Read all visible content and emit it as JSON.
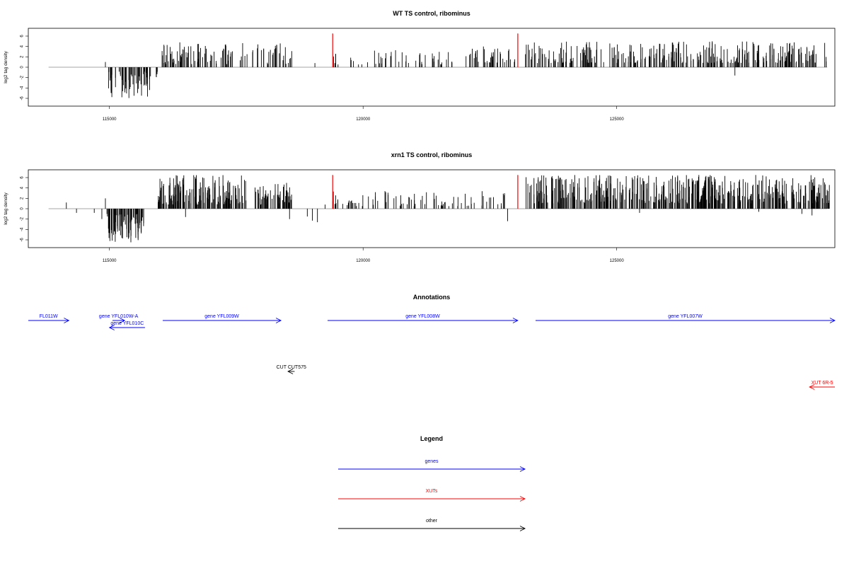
{
  "chart_data": [
    {
      "type": "bar",
      "title": "WT TS control, ribominus",
      "ylabel": "log2 tag density",
      "xlim": [
        113400,
        129300
      ],
      "ylim": [
        -7.5,
        7.5
      ],
      "yticks": [
        -6,
        -4,
        -2,
        0,
        2,
        4,
        6
      ],
      "xticks": [
        115000,
        120000,
        125000
      ],
      "xtick_labels": [
        "115000",
        "120000",
        "125000"
      ],
      "markers": [
        119400,
        123050
      ],
      "marker_color": "#ff0000",
      "regions": [
        {
          "start": 114950,
          "end": 115900,
          "min": -6,
          "max": -0.8,
          "n": 55,
          "seed": 11
        },
        {
          "start": 115900,
          "end": 116000,
          "min": -2,
          "max": -0.5,
          "n": 4,
          "seed": 3
        },
        {
          "start": 116000,
          "end": 118600,
          "min": 0.6,
          "max": 4.8,
          "n": 110,
          "seed": 21
        },
        {
          "start": 119400,
          "end": 121800,
          "min": 0.5,
          "max": 3.4,
          "n": 50,
          "seed": 31
        },
        {
          "start": 121950,
          "end": 123000,
          "min": 0.8,
          "max": 4.0,
          "n": 40,
          "seed": 41
        },
        {
          "start": 123200,
          "end": 129150,
          "min": 0.8,
          "max": 5.0,
          "n": 300,
          "seed": 51
        }
      ],
      "extras": [
        [
          114920,
          1.0
        ],
        [
          119050,
          0.8
        ],
        [
          127330,
          -1.6
        ]
      ]
    },
    {
      "type": "bar",
      "title": "xrn1 TS control, ribominus",
      "ylabel": "log2 tag density",
      "xlim": [
        113400,
        129300
      ],
      "ylim": [
        -7.5,
        7.5
      ],
      "yticks": [
        -6,
        -4,
        -2,
        0,
        2,
        4,
        6
      ],
      "xticks": [
        115000,
        120000,
        125000
      ],
      "xtick_labels": [
        "115000",
        "120000",
        "125000"
      ],
      "markers": [
        119400,
        123050
      ],
      "marker_color": "#ff0000",
      "regions": [
        {
          "start": 114950,
          "end": 115700,
          "min": -6.5,
          "max": -0.8,
          "n": 90,
          "seed": 12
        },
        {
          "start": 115950,
          "end": 117700,
          "min": 0.8,
          "max": 6.5,
          "n": 160,
          "seed": 22
        },
        {
          "start": 117850,
          "end": 118600,
          "min": 0.8,
          "max": 5.0,
          "n": 60,
          "seed": 23
        },
        {
          "start": 119400,
          "end": 122900,
          "min": 0.5,
          "max": 3.4,
          "n": 90,
          "seed": 32
        },
        {
          "start": 123200,
          "end": 129200,
          "min": 1.0,
          "max": 6.5,
          "n": 480,
          "seed": 52
        }
      ],
      "extras": [
        [
          114150,
          1.2
        ],
        [
          114350,
          -0.8
        ],
        [
          114700,
          -0.8
        ],
        [
          114920,
          2.0
        ],
        [
          114850,
          -2.0
        ],
        [
          116500,
          -1.6
        ],
        [
          118550,
          -2.0
        ],
        [
          118900,
          -1.5
        ],
        [
          119100,
          -2.6
        ],
        [
          119000,
          -2.3
        ],
        [
          119250,
          0.8
        ],
        [
          122850,
          -2.4
        ],
        [
          125450,
          -0.8
        ],
        [
          127800,
          -0.6
        ],
        [
          128650,
          -1.0
        ],
        [
          128850,
          -1.3
        ]
      ]
    }
  ],
  "annotations": {
    "title": "Annotations",
    "xlim": [
      113400,
      129300
    ],
    "items": [
      {
        "label": "FL011W",
        "start": 113400,
        "end": 114200,
        "row": 0,
        "dir": "right",
        "color": "#0000ff"
      },
      {
        "label": "gene YFL010W-A",
        "start": 115060,
        "end": 115300,
        "row": 0,
        "dir": "right",
        "color": "#0000ff"
      },
      {
        "label": "gene YFL010C",
        "start": 115000,
        "end": 115700,
        "row": 1,
        "dir": "left",
        "color": "#0000ff"
      },
      {
        "label": "gene YFL009W",
        "start": 116050,
        "end": 118380,
        "row": 0,
        "dir": "right",
        "color": "#0000ff"
      },
      {
        "label": "gene YFL008W",
        "start": 119300,
        "end": 123050,
        "row": 0,
        "dir": "right",
        "color": "#0000ff"
      },
      {
        "label": "gene YFL007W",
        "start": 123400,
        "end": 129300,
        "row": 0,
        "dir": "right",
        "color": "#0000ff"
      },
      {
        "label": "CUT CUT575",
        "start": 118520,
        "end": 118650,
        "row": 2,
        "dir": "left",
        "color": "#000000"
      },
      {
        "label": "XUT 6R-5",
        "start": 128800,
        "end": 129300,
        "row": 3,
        "dir": "left",
        "color": "#ff0000"
      }
    ]
  },
  "legend": {
    "title": "Legend",
    "items": [
      {
        "label": "genes",
        "color": "#0000ff"
      },
      {
        "label": "XUTs",
        "color": "#ff0000"
      },
      {
        "label": "other",
        "color": "#000000"
      }
    ]
  }
}
